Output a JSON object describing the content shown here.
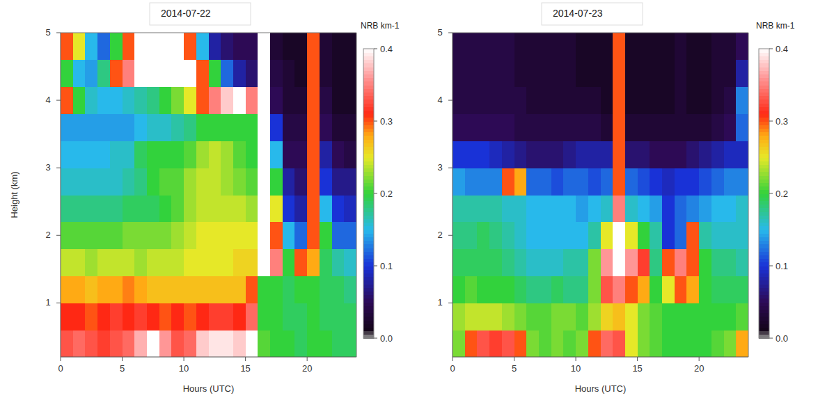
{
  "chart_data": [
    {
      "type": "heatmap",
      "title": "2014-07-22",
      "x_label": "Hours (UTC)",
      "y_label": "Height (km)",
      "xlim": [
        0,
        24
      ],
      "ylim": [
        0.2,
        5
      ],
      "xticks": [
        0,
        5,
        10,
        15,
        20
      ],
      "yticks": [
        1,
        2,
        3,
        4,
        5
      ],
      "x_bins": [
        0,
        1,
        2,
        3,
        4,
        5,
        6,
        7,
        8,
        9,
        10,
        11,
        12,
        13,
        14,
        15,
        16,
        17,
        18,
        19,
        20,
        21,
        22,
        23,
        24
      ],
      "y_bins": [
        0.2,
        0.6,
        1.0,
        1.4,
        1.8,
        2.2,
        2.6,
        3.0,
        3.4,
        3.8,
        4.2,
        4.6,
        5.0
      ],
      "values": [
        [
          0.33,
          0.34,
          0.33,
          0.32,
          0.33,
          0.34,
          0.37,
          0.4,
          0.36,
          0.33,
          0.34,
          0.38,
          0.39,
          0.39,
          0.38,
          0.42,
          0.21,
          0.2,
          0.2,
          0.19,
          0.2,
          0.2,
          0.19,
          0.19
        ],
        [
          0.31,
          0.31,
          0.3,
          0.31,
          0.32,
          0.31,
          0.32,
          0.31,
          0.3,
          0.31,
          0.3,
          0.31,
          0.32,
          0.32,
          0.31,
          0.34,
          0.2,
          0.2,
          0.19,
          0.19,
          0.2,
          0.19,
          0.19,
          0.19
        ],
        [
          0.28,
          0.28,
          0.27,
          0.28,
          0.28,
          0.29,
          0.28,
          0.27,
          0.27,
          0.27,
          0.27,
          0.27,
          0.27,
          0.27,
          0.27,
          0.3,
          0.2,
          0.2,
          0.19,
          0.2,
          0.2,
          0.19,
          0.19,
          0.18
        ],
        [
          0.24,
          0.24,
          0.23,
          0.24,
          0.24,
          0.24,
          0.23,
          0.24,
          0.24,
          0.24,
          0.25,
          0.25,
          0.25,
          0.25,
          0.26,
          0.26,
          0.4,
          0.35,
          0.2,
          0.3,
          0.28,
          0.19,
          0.17,
          0.16
        ],
        [
          0.21,
          0.21,
          0.21,
          0.21,
          0.21,
          0.22,
          0.22,
          0.22,
          0.22,
          0.23,
          0.24,
          0.25,
          0.25,
          0.25,
          0.25,
          0.25,
          0.45,
          0.3,
          0.15,
          0.12,
          0.3,
          0.2,
          0.12,
          0.12
        ],
        [
          0.18,
          0.18,
          0.18,
          0.18,
          0.18,
          0.19,
          0.19,
          0.19,
          0.2,
          0.21,
          0.23,
          0.24,
          0.24,
          0.24,
          0.24,
          0.23,
          0.4,
          0.25,
          0.1,
          0.08,
          0.3,
          0.15,
          0.1,
          0.09
        ],
        [
          0.16,
          0.16,
          0.16,
          0.16,
          0.16,
          0.17,
          0.18,
          0.2,
          0.21,
          0.21,
          0.23,
          0.24,
          0.24,
          0.23,
          0.22,
          0.21,
          0.4,
          0.2,
          0.08,
          0.06,
          0.3,
          0.1,
          0.07,
          0.07
        ],
        [
          0.15,
          0.15,
          0.15,
          0.15,
          0.16,
          0.16,
          0.19,
          0.2,
          0.2,
          0.2,
          0.21,
          0.23,
          0.24,
          0.23,
          0.21,
          0.2,
          0.4,
          0.15,
          0.05,
          0.05,
          0.3,
          0.08,
          0.05,
          0.04
        ],
        [
          0.14,
          0.14,
          0.14,
          0.14,
          0.14,
          0.14,
          0.15,
          0.16,
          0.16,
          0.17,
          0.18,
          0.2,
          0.2,
          0.2,
          0.2,
          0.2,
          0.4,
          0.1,
          0.04,
          0.04,
          0.3,
          0.05,
          0.03,
          0.03
        ],
        [
          0.3,
          0.2,
          0.16,
          0.15,
          0.15,
          0.16,
          0.17,
          0.18,
          0.2,
          0.22,
          0.25,
          0.3,
          0.35,
          0.38,
          0.4,
          0.35,
          0.4,
          0.05,
          0.03,
          0.03,
          0.3,
          0.04,
          0.02,
          0.02
        ],
        [
          0.2,
          0.15,
          0.14,
          0.18,
          0.3,
          0.35,
          0.4,
          0.45,
          0.45,
          0.45,
          0.42,
          0.3,
          0.2,
          0.12,
          0.08,
          0.06,
          0.4,
          0.04,
          0.03,
          0.02,
          0.3,
          0.03,
          0.02,
          0.02
        ],
        [
          0.3,
          0.25,
          0.15,
          0.12,
          0.2,
          0.3,
          0.42,
          0.45,
          0.45,
          0.4,
          0.3,
          0.15,
          0.08,
          0.06,
          0.05,
          0.05,
          0.4,
          0.03,
          0.02,
          0.02,
          0.3,
          0.03,
          0.02,
          0.02
        ]
      ],
      "colorbar": {
        "title": "NRB km-1",
        "range": [
          0,
          0.4
        ],
        "ticks": [
          {
            "value": 0,
            "label": "0.0"
          },
          {
            "value": 0.1,
            "label": "0.1"
          },
          {
            "value": 0.2,
            "label": "0.2"
          },
          {
            "value": 0.3,
            "label": "0.3"
          },
          {
            "value": 0.4,
            "label": "0.4"
          }
        ]
      }
    },
    {
      "type": "heatmap",
      "title": "2014-07-23",
      "x_label": "Hours (UTC)",
      "xlim": [
        0,
        24
      ],
      "ylim": [
        0.2,
        5
      ],
      "xticks": [
        0,
        5,
        10,
        15,
        20
      ],
      "yticks": [
        1,
        2,
        3,
        4,
        5
      ],
      "x_bins": [
        0,
        1,
        2,
        3,
        4,
        5,
        6,
        7,
        8,
        9,
        10,
        11,
        12,
        13,
        14,
        15,
        16,
        17,
        18,
        19,
        20,
        21,
        22,
        23,
        24
      ],
      "y_bins": [
        0.2,
        0.6,
        1.0,
        1.4,
        1.8,
        2.2,
        2.6,
        3.0,
        3.4,
        3.8,
        4.2,
        4.6,
        5.0
      ],
      "values": [
        [
          0.22,
          0.3,
          0.33,
          0.32,
          0.33,
          0.3,
          0.22,
          0.21,
          0.22,
          0.21,
          0.22,
          0.3,
          0.34,
          0.33,
          0.25,
          0.22,
          0.21,
          0.2,
          0.2,
          0.2,
          0.2,
          0.21,
          0.22,
          0.28
        ],
        [
          0.23,
          0.24,
          0.24,
          0.24,
          0.23,
          0.22,
          0.21,
          0.21,
          0.22,
          0.22,
          0.21,
          0.23,
          0.26,
          0.27,
          0.25,
          0.22,
          0.21,
          0.2,
          0.2,
          0.2,
          0.2,
          0.2,
          0.2,
          0.21
        ],
        [
          0.2,
          0.21,
          0.2,
          0.2,
          0.2,
          0.19,
          0.18,
          0.18,
          0.19,
          0.18,
          0.18,
          0.22,
          0.33,
          0.35,
          0.3,
          0.28,
          0.2,
          0.25,
          0.3,
          0.28,
          0.2,
          0.19,
          0.19,
          0.19
        ],
        [
          0.19,
          0.19,
          0.19,
          0.19,
          0.18,
          0.17,
          0.16,
          0.16,
          0.16,
          0.17,
          0.17,
          0.22,
          0.36,
          0.4,
          0.36,
          0.32,
          0.18,
          0.3,
          0.35,
          0.3,
          0.2,
          0.18,
          0.18,
          0.17
        ],
        [
          0.18,
          0.18,
          0.19,
          0.18,
          0.17,
          0.16,
          0.15,
          0.15,
          0.15,
          0.15,
          0.15,
          0.17,
          0.25,
          0.4,
          0.25,
          0.2,
          0.17,
          0.1,
          0.12,
          0.3,
          0.17,
          0.16,
          0.16,
          0.16
        ],
        [
          0.17,
          0.17,
          0.17,
          0.17,
          0.16,
          0.16,
          0.15,
          0.15,
          0.15,
          0.15,
          0.14,
          0.15,
          0.16,
          0.35,
          0.16,
          0.15,
          0.14,
          0.1,
          0.12,
          0.13,
          0.14,
          0.15,
          0.15,
          0.16
        ],
        [
          0.14,
          0.13,
          0.13,
          0.13,
          0.3,
          0.28,
          0.12,
          0.12,
          0.11,
          0.12,
          0.12,
          0.11,
          0.12,
          0.3,
          0.12,
          0.11,
          0.1,
          0.09,
          0.1,
          0.1,
          0.11,
          0.12,
          0.13,
          0.13
        ],
        [
          0.1,
          0.1,
          0.1,
          0.09,
          0.08,
          0.07,
          0.06,
          0.06,
          0.06,
          0.07,
          0.08,
          0.08,
          0.08,
          0.3,
          0.06,
          0.06,
          0.05,
          0.05,
          0.05,
          0.06,
          0.07,
          0.08,
          0.09,
          0.09
        ],
        [
          0.05,
          0.05,
          0.05,
          0.05,
          0.05,
          0.04,
          0.04,
          0.04,
          0.04,
          0.04,
          0.04,
          0.04,
          0.03,
          0.3,
          0.03,
          0.03,
          0.03,
          0.03,
          0.03,
          0.03,
          0.03,
          0.04,
          0.05,
          0.12
        ],
        [
          0.04,
          0.04,
          0.04,
          0.04,
          0.04,
          0.04,
          0.03,
          0.03,
          0.03,
          0.03,
          0.03,
          0.03,
          0.02,
          0.3,
          0.02,
          0.02,
          0.02,
          0.02,
          0.03,
          0.02,
          0.02,
          0.03,
          0.04,
          0.13
        ],
        [
          0.04,
          0.04,
          0.04,
          0.04,
          0.04,
          0.03,
          0.03,
          0.03,
          0.03,
          0.03,
          0.02,
          0.02,
          0.02,
          0.3,
          0.02,
          0.02,
          0.02,
          0.02,
          0.03,
          0.02,
          0.02,
          0.03,
          0.03,
          0.08
        ],
        [
          0.04,
          0.04,
          0.04,
          0.04,
          0.04,
          0.03,
          0.03,
          0.03,
          0.03,
          0.03,
          0.02,
          0.02,
          0.02,
          0.3,
          0.02,
          0.02,
          0.02,
          0.02,
          0.03,
          0.02,
          0.02,
          0.03,
          0.03,
          0.05
        ]
      ],
      "colorbar": {
        "title": "NRB km-1",
        "range": [
          0,
          0.4
        ],
        "ticks": [
          {
            "value": 0,
            "label": "0.0"
          },
          {
            "value": 0.1,
            "label": "0.1"
          },
          {
            "value": 0.2,
            "label": "0.2"
          },
          {
            "value": 0.3,
            "label": "0.3"
          },
          {
            "value": 0.4,
            "label": "0.4"
          }
        ]
      }
    }
  ]
}
